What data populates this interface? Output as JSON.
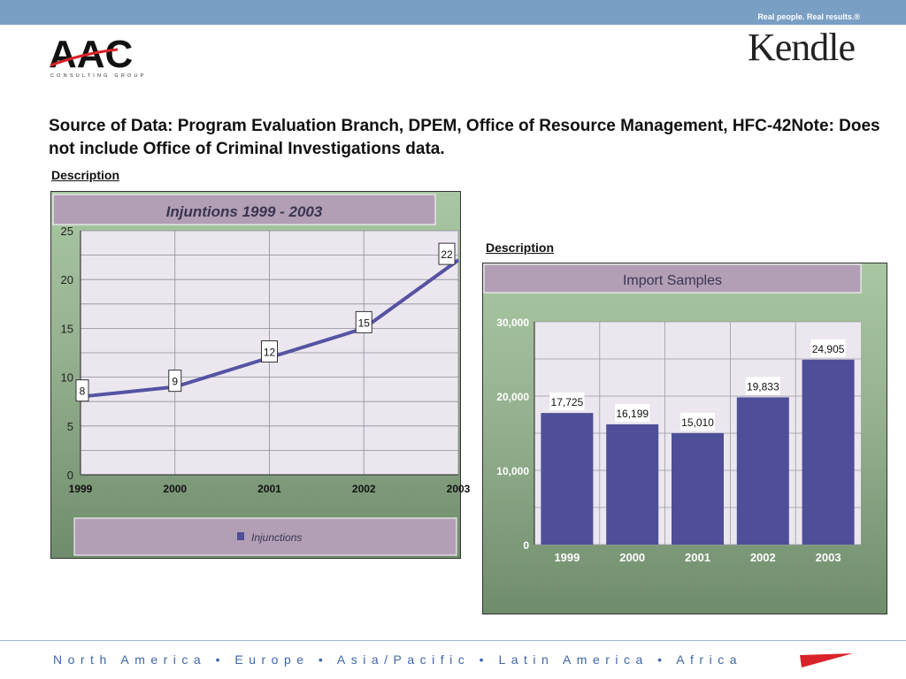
{
  "header": {
    "tagline": "Real people. Real results.®",
    "aac_logo_text": "AAC",
    "aac_logo_sub": "CONSULTING GROUP",
    "kendle_logo_text": "Kendle"
  },
  "source_text": "Source of Data: Program Evaluation Branch, DPEM, Office of Resource Management, HFC-42Note: Does not include Office of Criminal Investigations data.",
  "left_description": "Description",
  "right_description": "Description",
  "footer": {
    "regions": "North America • Europe • Asia/Pacific • Latin America • Africa"
  },
  "colors": {
    "accent_blue": "#4f4f99",
    "title_band": "#b29fb6",
    "plot_bg": "#ece7ef",
    "footer_red": "#d8232a"
  },
  "chart_data": [
    {
      "type": "line",
      "title": "Injuntions 1999 - 2003",
      "x": [
        "1999",
        "2000",
        "2001",
        "2002",
        "2003"
      ],
      "series": [
        {
          "name": "Injunctions",
          "values": [
            8,
            9,
            12,
            15,
            22
          ]
        }
      ],
      "data_labels": [
        "8",
        "9",
        "12",
        "15",
        "22"
      ],
      "ylim": [
        0,
        25
      ],
      "yticks": [
        "0",
        "5",
        "10",
        "15",
        "20",
        "25"
      ],
      "grid": true,
      "legend": "bottom"
    },
    {
      "type": "bar",
      "title": "Import Samples",
      "categories": [
        "1999",
        "2000",
        "2001",
        "2002",
        "2003"
      ],
      "values": [
        17725,
        16199,
        15010,
        19833,
        24905
      ],
      "data_labels": [
        "17,725",
        "16,199",
        "15,010",
        "19,833",
        "24,905"
      ],
      "ylim": [
        0,
        30000
      ],
      "yticks": [
        "0",
        "10,000",
        "20,000",
        "30,000"
      ],
      "grid": true,
      "legend": "none"
    }
  ]
}
